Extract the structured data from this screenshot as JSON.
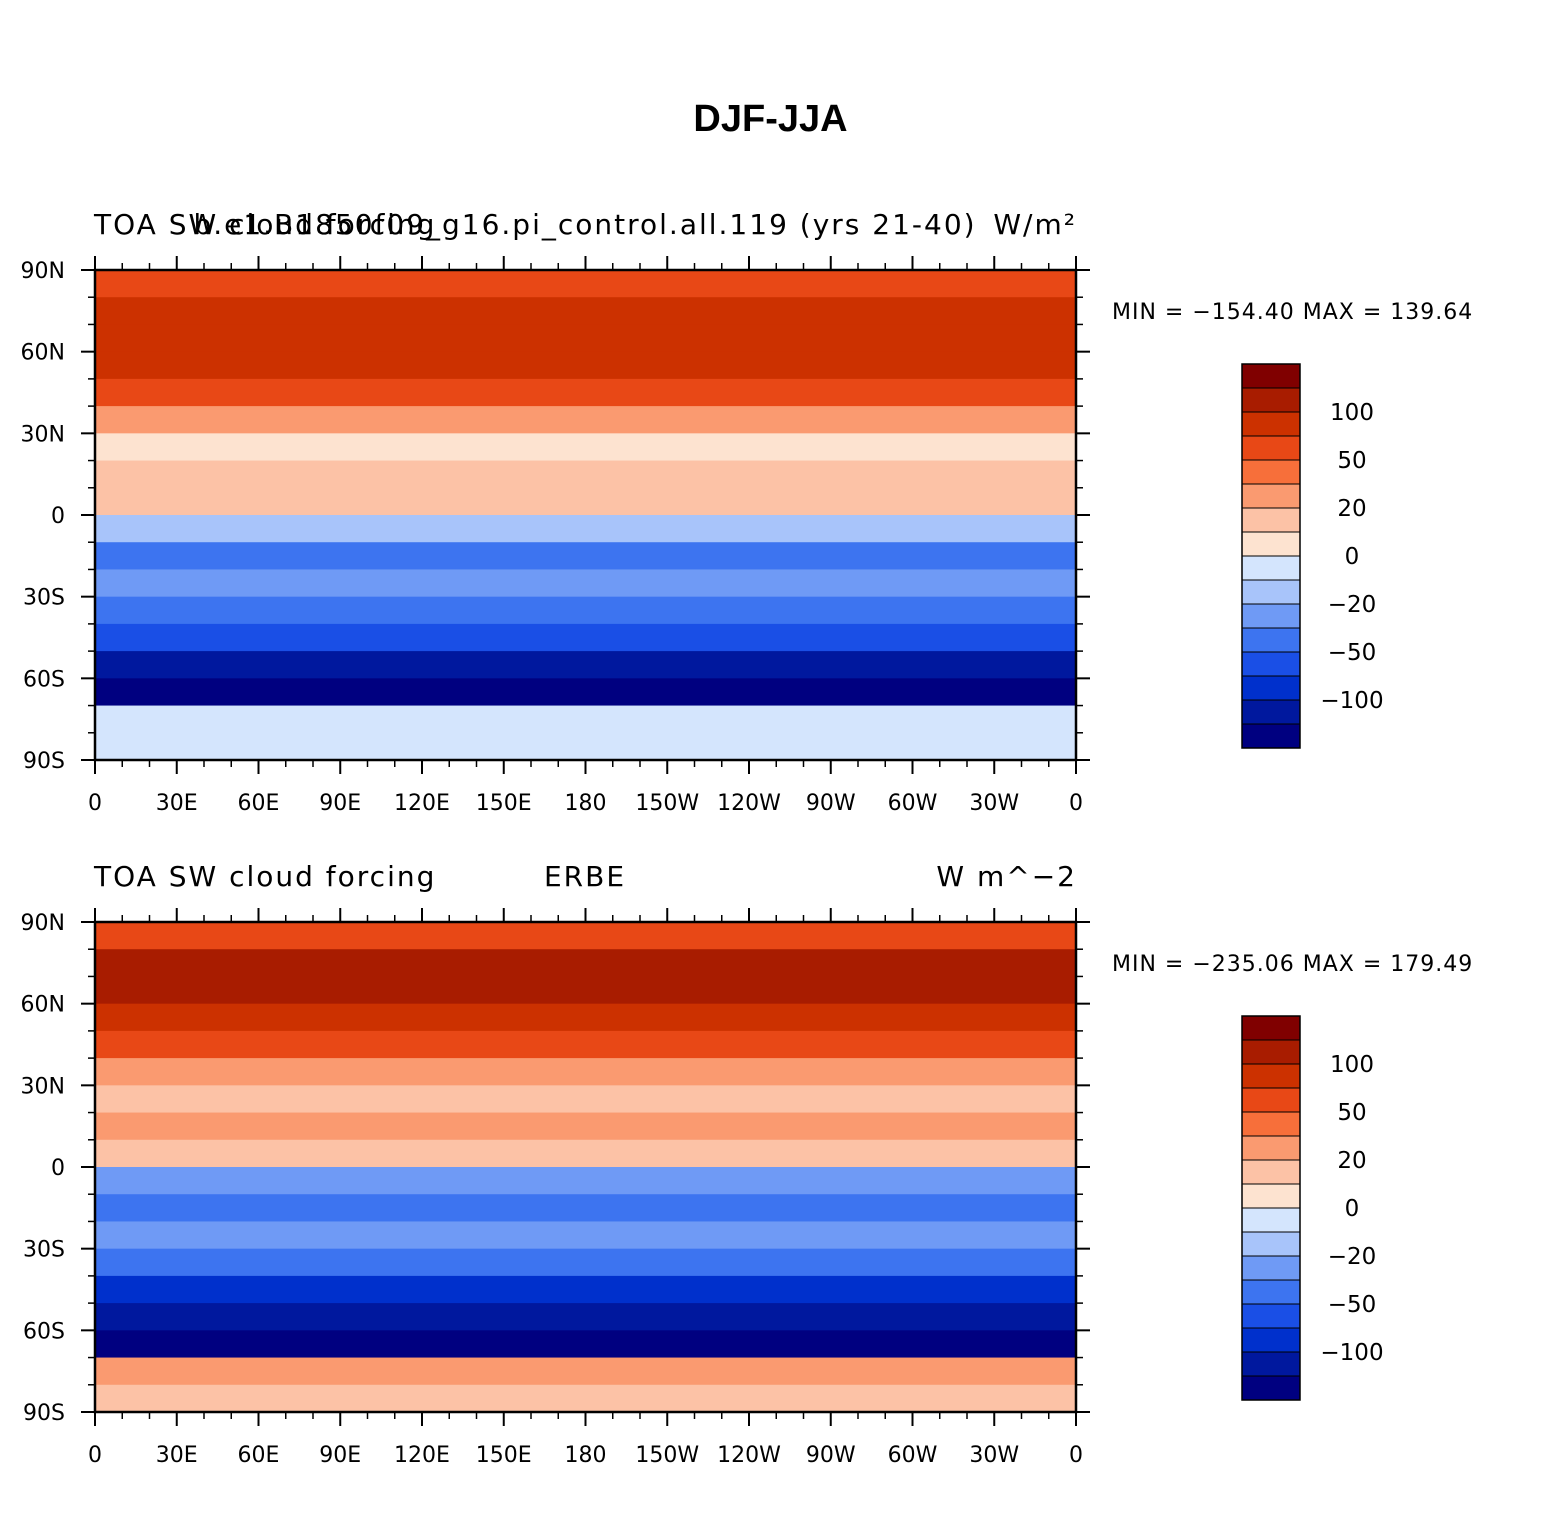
{
  "title": "DJF-JJA",
  "palette": {
    "colors": [
      "#000080",
      "#00189e",
      "#0030cc",
      "#1a4fe6",
      "#3d74f0",
      "#6f9af5",
      "#a8c4fa",
      "#d4e5fd",
      "#fde3d0",
      "#fcc2a6",
      "#fa9a70",
      "#f76f3a",
      "#e84816",
      "#cc3100",
      "#a81c00",
      "#800000"
    ],
    "levels": [
      -150,
      -125,
      -100,
      -75,
      -50,
      -30,
      -20,
      -10,
      0,
      10,
      20,
      30,
      50,
      75,
      100,
      125
    ],
    "labels": [
      "−100",
      "−50",
      "−20",
      "0",
      "20",
      "50",
      "100"
    ]
  },
  "axes": {
    "lat_ticks": [
      "90N",
      "60N",
      "30N",
      "0",
      "30S",
      "60S",
      "90S"
    ],
    "lon_ticks": [
      "0",
      "30E",
      "60E",
      "90E",
      "120E",
      "150E",
      "180",
      "150W",
      "120W",
      "90W",
      "60W",
      "30W",
      "0"
    ]
  },
  "panels": [
    {
      "left_text": "TOA SW cloud forcing",
      "center_text": "b.e1.B1850f09_g16.pi_control.all.119 (yrs 21-40)",
      "right_text": "W/m²",
      "minmax": "MIN = −154.40  MAX = 139.64"
    },
    {
      "left_text": "TOA SW cloud forcing",
      "center_text": "ERBE",
      "right_text": "W m^−2",
      "minmax": "MIN = −235.06  MAX = 179.49"
    }
  ],
  "chart_data": [
    {
      "type": "heatmap",
      "title": "DJF-JJA",
      "subtitle": "b.e1.B1850f09_g16.pi_control.all.119 (yrs 21-40)",
      "field": "TOA SW cloud forcing",
      "units": "W/m²",
      "min": -154.4,
      "max": 139.64,
      "x": "longitude",
      "y": "latitude",
      "xlim": [
        0,
        360
      ],
      "ylim": [
        -90,
        90
      ],
      "zonal_mean_by_latitude": {
        "lat": [
          85,
          75,
          65,
          55,
          45,
          35,
          25,
          15,
          5,
          -5,
          -15,
          -25,
          -35,
          -45,
          -55,
          -65,
          -75,
          -85
        ],
        "value": [
          60,
          90,
          95,
          80,
          55,
          20,
          5,
          15,
          10,
          -20,
          -45,
          -25,
          -40,
          -75,
          -110,
          -130,
          -10,
          -10
        ]
      }
    },
    {
      "type": "heatmap",
      "title": "DJF-JJA",
      "subtitle": "ERBE",
      "field": "TOA SW cloud forcing",
      "units": "W m^−2",
      "min": -235.06,
      "max": 179.49,
      "x": "longitude",
      "y": "latitude",
      "xlim": [
        0,
        360
      ],
      "ylim": [
        -90,
        90
      ],
      "zonal_mean_by_latitude": {
        "lat": [
          85,
          75,
          65,
          55,
          45,
          35,
          25,
          15,
          5,
          -5,
          -15,
          -25,
          -35,
          -45,
          -55,
          -65,
          -75,
          -85
        ],
        "value": [
          70,
          100,
          110,
          85,
          60,
          25,
          15,
          20,
          10,
          -25,
          -40,
          -30,
          -50,
          -80,
          -120,
          -160,
          25,
          15
        ]
      }
    }
  ]
}
